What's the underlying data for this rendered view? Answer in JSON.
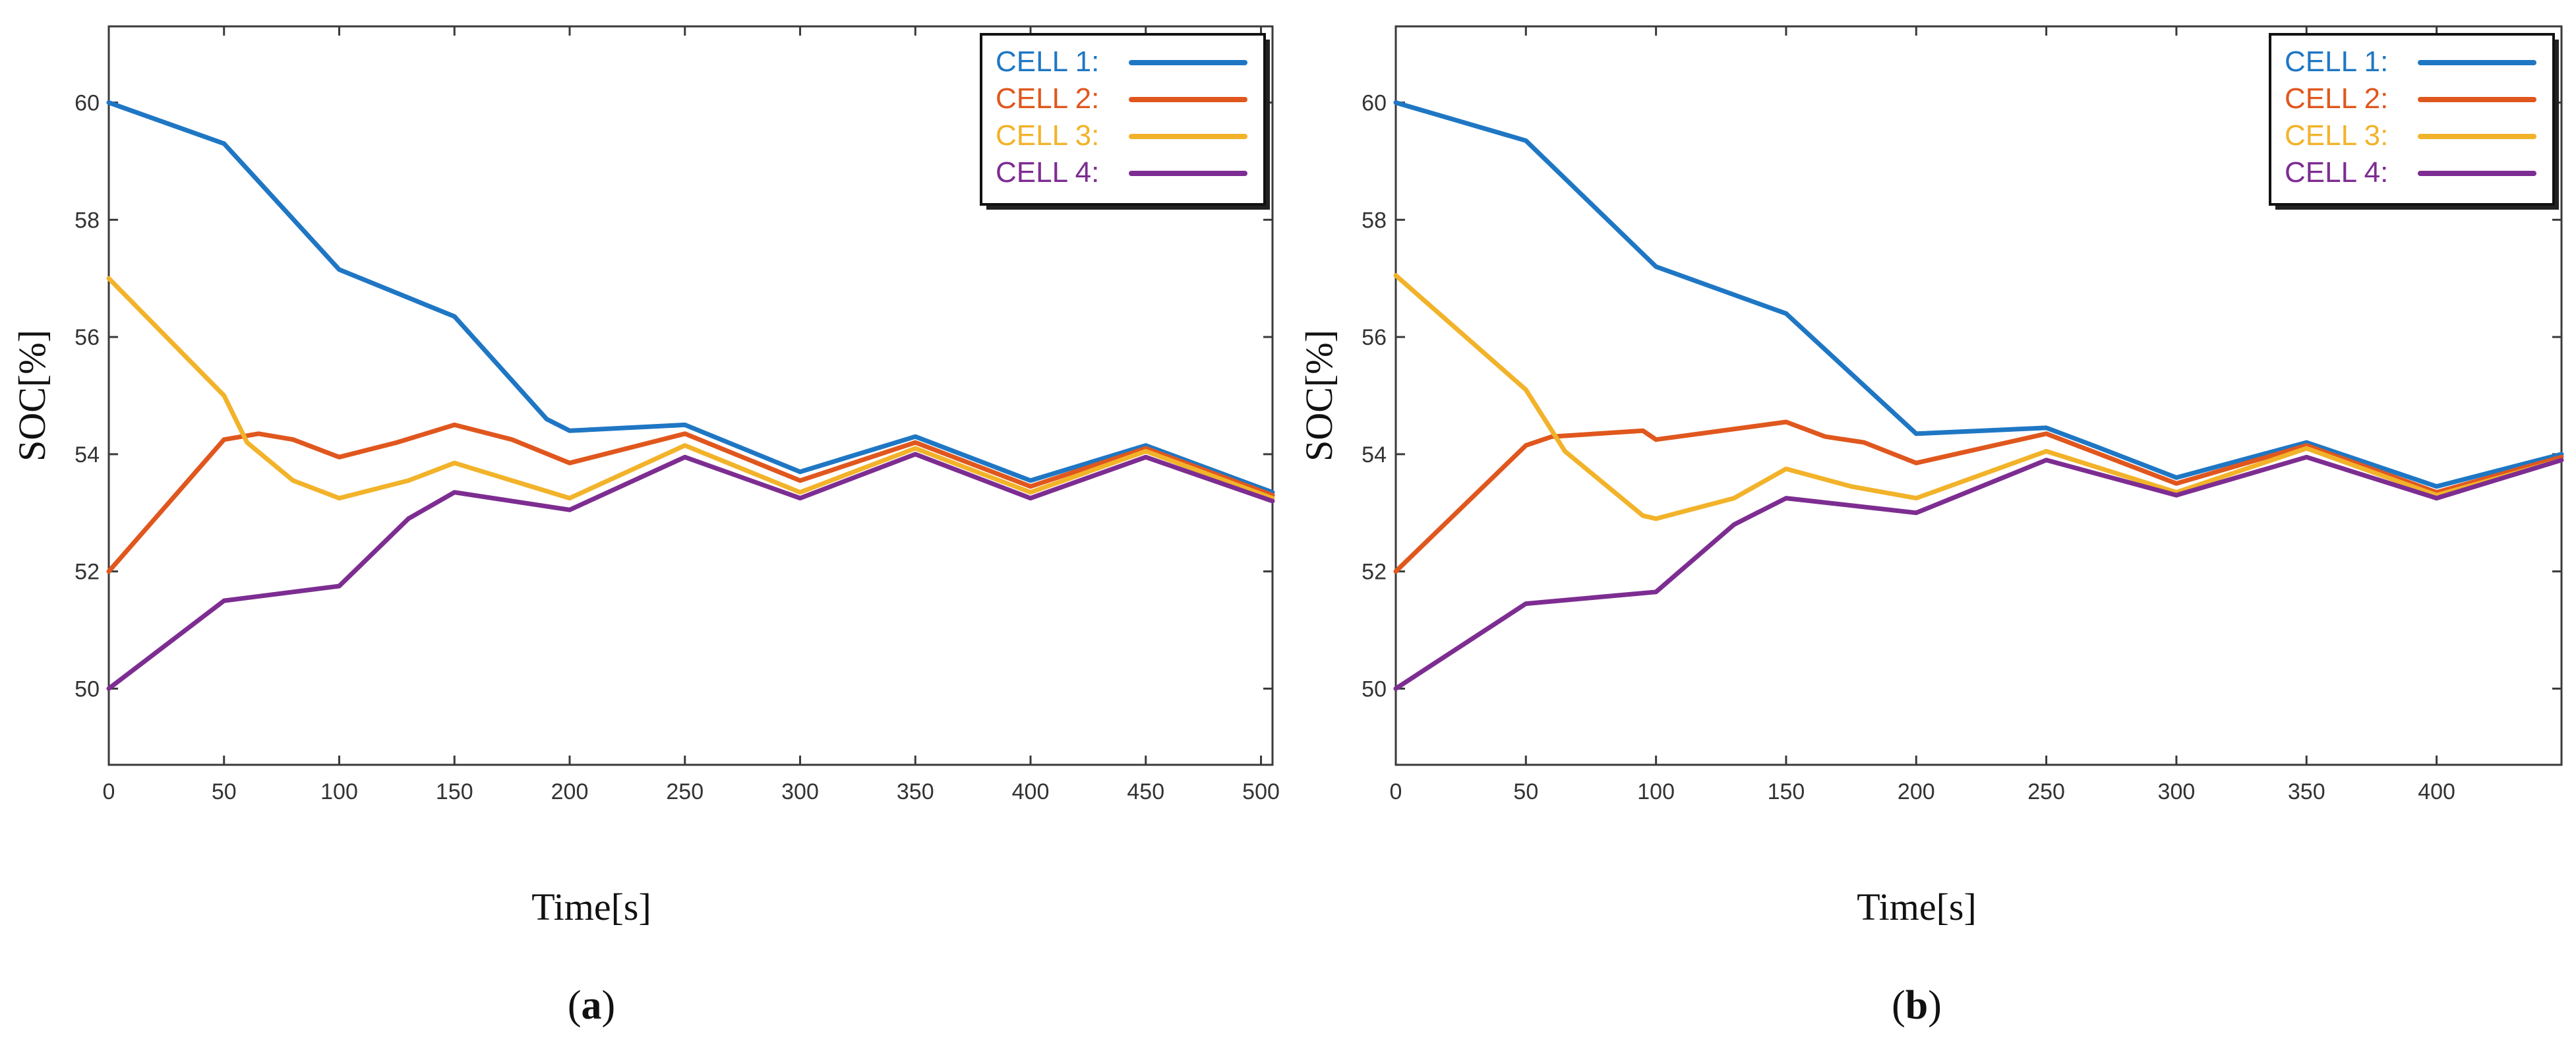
{
  "figure": {
    "panels": [
      "a",
      "b"
    ]
  },
  "chart_data": [
    {
      "type": "line",
      "panel_label": "a",
      "xlabel": "Time[s]",
      "ylabel": "SOC[%]",
      "xlim": [
        0,
        505
      ],
      "ylim": [
        48.7,
        61.3
      ],
      "xticks": [
        0,
        50,
        100,
        150,
        200,
        250,
        300,
        350,
        400,
        450,
        500
      ],
      "yticks": [
        50,
        52,
        54,
        56,
        58,
        60
      ],
      "grid": false,
      "legend_position": "top-right",
      "series": [
        {
          "name": "CELL 1:",
          "color": "#1f77c4",
          "x": [
            0,
            50,
            100,
            150,
            190,
            200,
            250,
            300,
            350,
            400,
            450,
            505
          ],
          "y": [
            60.0,
            59.3,
            57.15,
            56.35,
            54.6,
            54.4,
            54.5,
            53.7,
            54.3,
            53.55,
            54.15,
            53.35
          ]
        },
        {
          "name": "CELL 2:",
          "color": "#e0571e",
          "x": [
            0,
            50,
            65,
            80,
            100,
            125,
            150,
            175,
            200,
            250,
            300,
            350,
            400,
            450,
            505
          ],
          "y": [
            52.0,
            54.25,
            54.35,
            54.25,
            53.95,
            54.2,
            54.5,
            54.25,
            53.85,
            54.35,
            53.55,
            54.2,
            53.45,
            54.1,
            53.3
          ]
        },
        {
          "name": "CELL 3:",
          "color": "#f2b32a",
          "x": [
            0,
            50,
            60,
            80,
            100,
            130,
            150,
            200,
            250,
            300,
            350,
            400,
            450,
            505
          ],
          "y": [
            57.0,
            55.0,
            54.2,
            53.55,
            53.25,
            53.55,
            53.85,
            53.25,
            54.15,
            53.35,
            54.1,
            53.35,
            54.05,
            53.25
          ]
        },
        {
          "name": "CELL 4:",
          "color": "#7d2d91",
          "x": [
            0,
            50,
            100,
            130,
            150,
            200,
            250,
            300,
            350,
            400,
            450,
            505
          ],
          "y": [
            50.0,
            51.5,
            51.75,
            52.9,
            53.35,
            53.05,
            53.95,
            53.25,
            54.0,
            53.25,
            53.95,
            53.2
          ]
        }
      ]
    },
    {
      "type": "line",
      "panel_label": "b",
      "xlabel": "Time[s]",
      "ylabel": "SOC[%]",
      "xlim": [
        0,
        448
      ],
      "ylim": [
        48.7,
        61.3
      ],
      "xticks": [
        0,
        50,
        100,
        150,
        200,
        250,
        300,
        350,
        400
      ],
      "yticks": [
        50,
        52,
        54,
        56,
        58,
        60
      ],
      "grid": false,
      "legend_position": "top-right",
      "series": [
        {
          "name": "CELL 1:",
          "color": "#1f77c4",
          "x": [
            0,
            50,
            100,
            150,
            200,
            250,
            265,
            300,
            350,
            400,
            448
          ],
          "y": [
            60.0,
            59.35,
            57.2,
            56.4,
            54.35,
            54.45,
            54.2,
            53.6,
            54.2,
            53.45,
            54.0
          ]
        },
        {
          "name": "CELL 2:",
          "color": "#e0571e",
          "x": [
            0,
            50,
            60,
            95,
            100,
            150,
            165,
            180,
            200,
            250,
            300,
            350,
            400,
            448
          ],
          "y": [
            52.0,
            54.15,
            54.3,
            54.4,
            54.25,
            54.55,
            54.3,
            54.2,
            53.85,
            54.35,
            53.5,
            54.15,
            53.35,
            53.95
          ]
        },
        {
          "name": "CELL 3:",
          "color": "#f2b32a",
          "x": [
            0,
            50,
            65,
            95,
            100,
            130,
            150,
            175,
            200,
            250,
            300,
            350,
            400,
            448
          ],
          "y": [
            57.05,
            55.1,
            54.05,
            52.95,
            52.9,
            53.25,
            53.75,
            53.45,
            53.25,
            54.05,
            53.35,
            54.1,
            53.3,
            53.9
          ]
        },
        {
          "name": "CELL 4:",
          "color": "#7d2d91",
          "x": [
            0,
            50,
            100,
            130,
            150,
            200,
            250,
            300,
            350,
            400,
            448
          ],
          "y": [
            50.0,
            51.45,
            51.65,
            52.8,
            53.25,
            53.0,
            53.9,
            53.3,
            53.95,
            53.25,
            53.9
          ]
        }
      ]
    }
  ]
}
